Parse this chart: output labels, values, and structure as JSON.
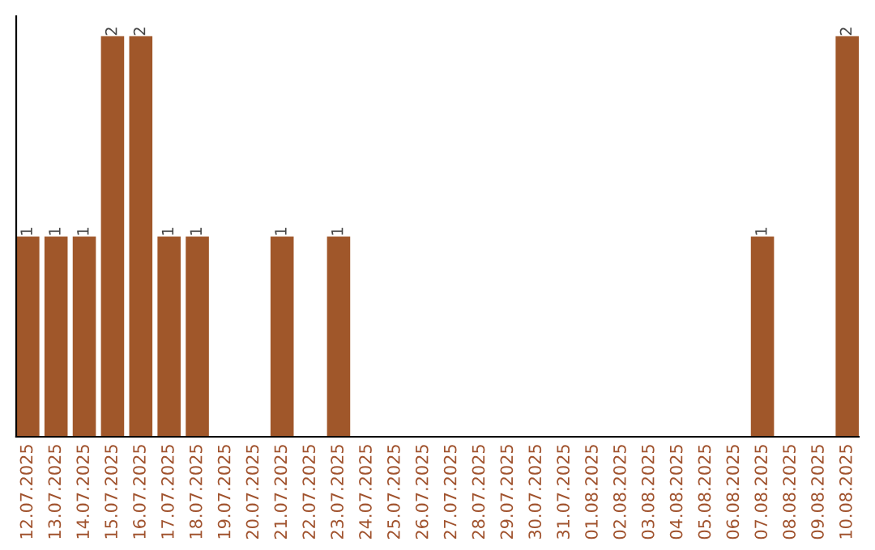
{
  "chart_data": {
    "type": "bar",
    "categories": [
      "12.07.2025",
      "13.07.2025",
      "14.07.2025",
      "15.07.2025",
      "16.07.2025",
      "17.07.2025",
      "18.07.2025",
      "19.07.2025",
      "20.07.2025",
      "21.07.2025",
      "22.07.2025",
      "23.07.2025",
      "24.07.2025",
      "25.07.2025",
      "26.07.2025",
      "27.07.2025",
      "28.07.2025",
      "29.07.2025",
      "30.07.2025",
      "31.07.2025",
      "01.08.2025",
      "02.08.2025",
      "03.08.2025",
      "04.08.2025",
      "05.08.2025",
      "06.08.2025",
      "07.08.2025",
      "08.08.2025",
      "09.08.2025",
      "10.08.2025"
    ],
    "values": [
      1,
      1,
      1,
      2,
      2,
      1,
      1,
      null,
      null,
      1,
      null,
      1,
      null,
      null,
      null,
      null,
      null,
      null,
      null,
      null,
      null,
      null,
      null,
      null,
      null,
      null,
      1,
      null,
      null,
      2
    ],
    "value_labels": [
      "1",
      "1",
      "1",
      "2",
      "2",
      "1",
      "1",
      null,
      null,
      "1",
      null,
      "1",
      null,
      null,
      null,
      null,
      null,
      null,
      null,
      null,
      null,
      null,
      null,
      null,
      null,
      null,
      "1",
      null,
      null,
      "2"
    ],
    "color": "#a0572a",
    "grid": false,
    "legend": false
  }
}
